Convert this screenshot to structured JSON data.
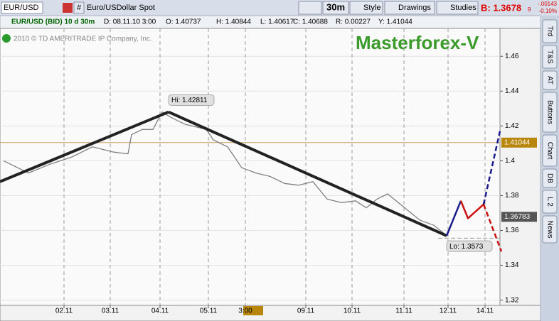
{
  "toolbar": {
    "symbol": "EUR/USD",
    "hash": "#",
    "description": "Euro/USDollar Spot",
    "period": "30m",
    "style": "Style",
    "drawings": "Drawings",
    "studies": "Studies",
    "bid": "B: 1.3678",
    "bid_fraction": "9",
    "change": "-.00143",
    "change_pct": "-0.10%"
  },
  "info_bar": {
    "instrument": "EUR/USD (BID) 10 d 30m",
    "date": "D: 08.11.10 3:00",
    "open": "O: 1.40737",
    "high": "H: 1.40844",
    "low": "L: 1.40617",
    "close": "C: 1.40688",
    "range": "R: 0.00227",
    "y": "Y: 1.41044"
  },
  "copyright": "2010 © TD AMERITRADE IP Company, Inc.",
  "watermark": "Masterforex-V",
  "side_tabs": [
    "Trd",
    "T&S",
    "AT",
    "Buttons",
    "Chart",
    "DB",
    "L 2",
    "News"
  ],
  "chart_data": {
    "type": "line",
    "xlim": [
      0,
      140.6
    ],
    "ylim": [
      1.317,
      1.476
    ],
    "yticks": [
      1.32,
      1.34,
      1.36,
      1.38,
      1.4,
      1.42,
      1.44,
      1.46
    ],
    "xticks": [
      {
        "value": 18,
        "label": "02.11"
      },
      {
        "value": 31,
        "label": "03.11"
      },
      {
        "value": 45,
        "label": "04.11"
      },
      {
        "value": 58.6,
        "label": "05.11"
      },
      {
        "value": 69,
        "label": "3:00"
      },
      {
        "value": 86,
        "label": "09.11"
      },
      {
        "value": 99,
        "label": "10.11"
      },
      {
        "value": 113.6,
        "label": "11.11"
      },
      {
        "value": 126,
        "label": "12.11"
      },
      {
        "value": 136.4,
        "label": "14.11"
      }
    ],
    "grid": true,
    "series": [
      {
        "color": "#808080",
        "width": 1.3,
        "dashed": false,
        "x": [
          1,
          8,
          14,
          20,
          26,
          32,
          36,
          37,
          40,
          43,
          45.6,
          48,
          52,
          58,
          60,
          64,
          68,
          72,
          76,
          80,
          84,
          88,
          92,
          96,
          100,
          103,
          106,
          109,
          112,
          115,
          118,
          122,
          125
        ],
        "values": [
          1.4,
          1.393,
          1.398,
          1.402,
          1.408,
          1.405,
          1.404,
          1.415,
          1.418,
          1.418,
          1.428,
          1.425,
          1.421,
          1.418,
          1.412,
          1.408,
          1.396,
          1.393,
          1.391,
          1.387,
          1.386,
          1.388,
          1.378,
          1.376,
          1.377,
          1.373,
          1.378,
          1.381,
          1.376,
          1.371,
          1.366,
          1.363,
          1.358
        ]
      },
      {
        "color": "#222222",
        "width": 4,
        "dashed": false,
        "x": [
          0,
          47.4
        ],
        "values": [
          1.388,
          1.428
        ]
      },
      {
        "color": "#222222",
        "width": 4,
        "dashed": false,
        "x": [
          47.4,
          125.6
        ],
        "values": [
          1.428,
          1.357
        ]
      },
      {
        "color": "#1a1a8c",
        "width": 2.5,
        "dashed": false,
        "x": [
          125.6,
          129.6
        ],
        "values": [
          1.357,
          1.377
        ]
      },
      {
        "color": "#cc1111",
        "width": 2.5,
        "dashed": false,
        "x": [
          129.6,
          131.6,
          136
        ],
        "values": [
          1.377,
          1.367,
          1.375
        ]
      },
      {
        "color": "#1a1a8c",
        "width": 2.5,
        "dashed": true,
        "x": [
          136,
          140.6
        ],
        "values": [
          1.375,
          1.417
        ]
      },
      {
        "color": "#cc1111",
        "width": 2.5,
        "dashed": true,
        "x": [
          136,
          141
        ],
        "values": [
          1.375,
          1.348
        ]
      }
    ],
    "levels": [
      {
        "value": 1.41044,
        "color": "#c8a060",
        "dashed": false
      },
      {
        "value": 1.3556,
        "color": "#999999",
        "dashed": true
      }
    ],
    "price_labels": [
      {
        "value": 1.41044,
        "color": "#b8860b"
      },
      {
        "value": 1.36783,
        "color": "#555555"
      }
    ],
    "annotations": [
      {
        "text": "Hi: 1.42811",
        "x": 47.4,
        "value": 1.42811
      },
      {
        "text": "Lo: 1.3573",
        "x": 125.6,
        "value": 1.3573
      }
    ]
  }
}
